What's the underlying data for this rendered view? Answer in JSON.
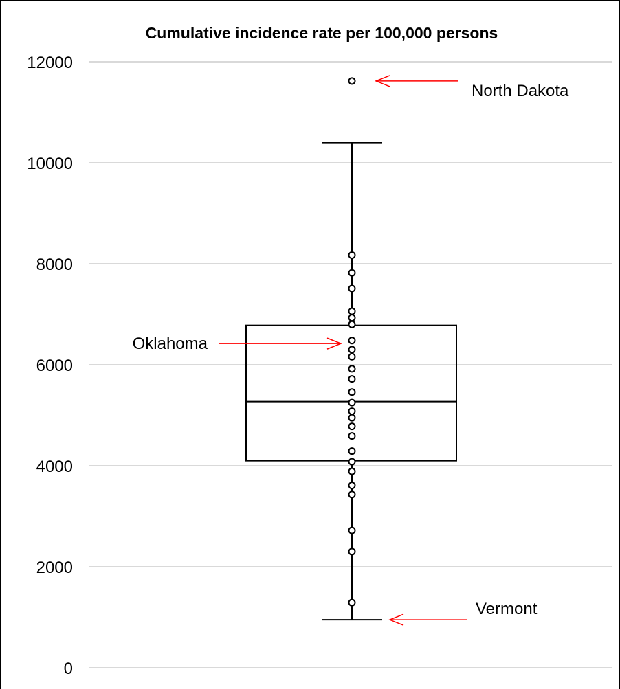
{
  "chart_data": {
    "type": "box",
    "title": "Cumulative incidence rate per 100,000 persons",
    "xlabel": "",
    "ylabel": "",
    "ylim": [
      0,
      12000
    ],
    "y_ticks": [
      0,
      2000,
      4000,
      6000,
      8000,
      10000,
      12000
    ],
    "y_tick_labels": [
      "0",
      "2000",
      "4000",
      "6000",
      "8000",
      "10000",
      "12000"
    ],
    "grid": true,
    "box": {
      "q1": 4100,
      "median": 5270,
      "q3": 6780,
      "whisker_low": 950,
      "whisker_high": 10400
    },
    "points": [
      11620,
      8170,
      7820,
      7510,
      7060,
      6930,
      6800,
      6480,
      6300,
      6160,
      5920,
      5720,
      5460,
      5250,
      5080,
      4950,
      4780,
      4590,
      4290,
      4080,
      3890,
      3610,
      3430,
      2720,
      2300,
      1290
    ],
    "outliers": [
      11620
    ],
    "annotations": [
      {
        "label": "North Dakota",
        "value": 11620,
        "side": "right"
      },
      {
        "label": "Oklahoma",
        "value": 6420,
        "side": "left"
      },
      {
        "label": "Vermont",
        "value": 950,
        "side": "right"
      }
    ],
    "colors": {
      "box": "#000000",
      "grid": "#d9d9d9",
      "arrow": "#ff0000",
      "marker": "#000000"
    }
  }
}
